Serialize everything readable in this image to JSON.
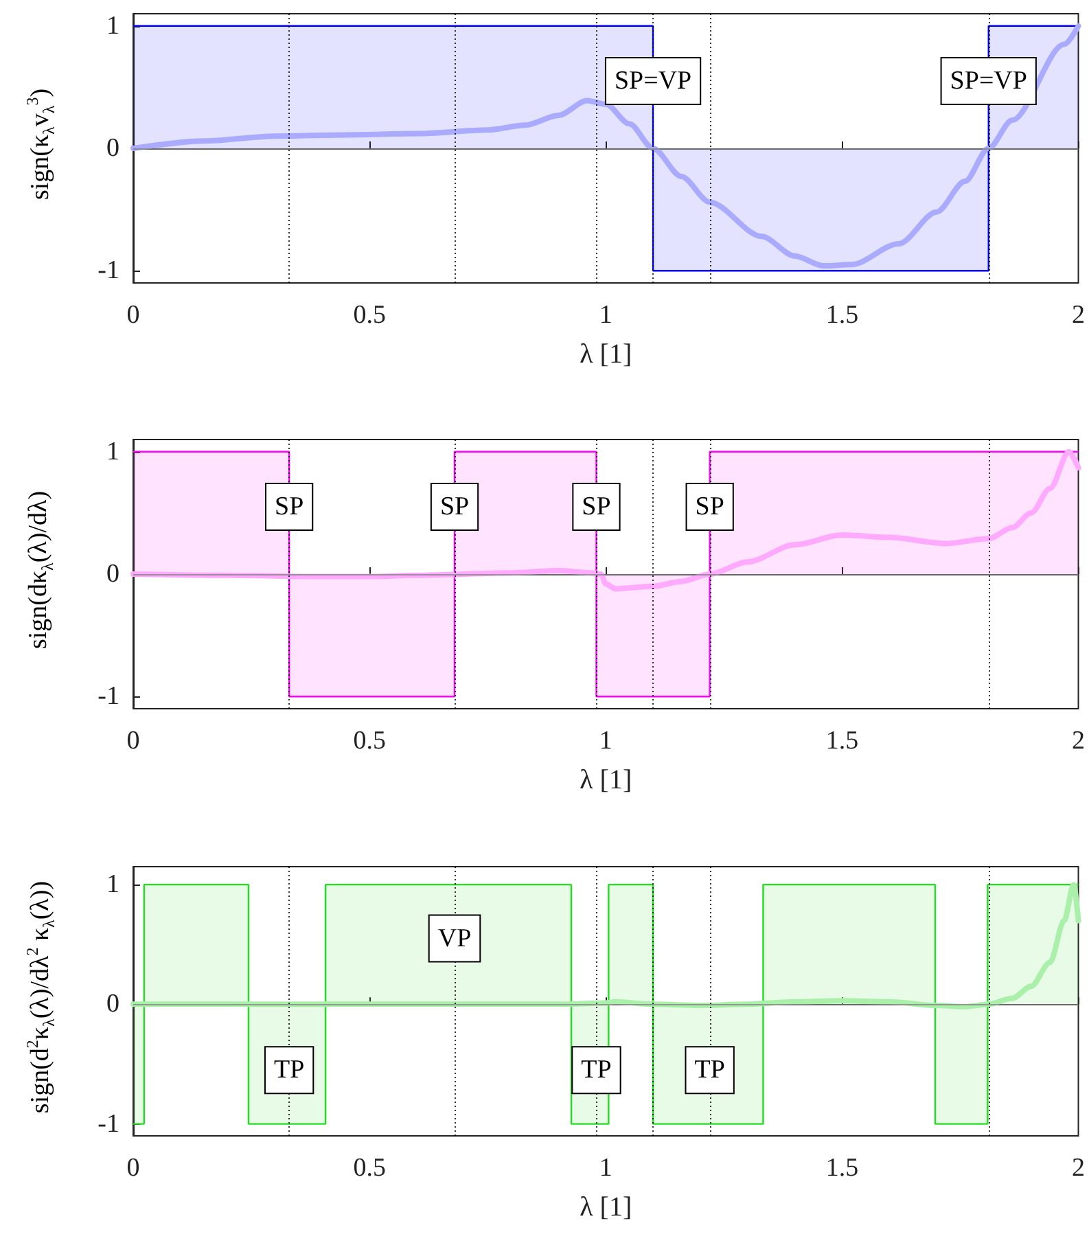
{
  "chart_data": [
    {
      "type": "step",
      "xlabel": "λ [1]",
      "ylabel": "sign(κ$_{λ}$v$_{λ}$$^{3}$)",
      "xlim": [
        0,
        2
      ],
      "ylim": [
        -1.1,
        1.1
      ],
      "xticks": [
        0,
        0.5,
        1,
        1.5,
        2
      ],
      "yticks": [
        -1,
        0,
        1
      ],
      "series": [
        {
          "type": "step",
          "color": "#0000ff",
          "x": [
            0,
            1.1,
            1.81,
            2
          ],
          "values": [
            1,
            -1,
            1,
            1
          ]
        },
        {
          "type": "line",
          "color": "#aaaaff",
          "x": [
            0,
            0.15,
            0.3,
            0.45,
            0.6,
            0.75,
            0.83,
            0.9,
            0.96,
            1.0,
            1.05,
            1.1,
            1.16,
            1.22,
            1.33,
            1.4,
            1.46,
            1.52,
            1.62,
            1.7,
            1.76,
            1.81,
            1.86,
            1.97,
            2
          ],
          "values": [
            0,
            0.06,
            0.1,
            0.11,
            0.12,
            0.15,
            0.19,
            0.27,
            0.39,
            0.36,
            0.2,
            0,
            -0.23,
            -0.44,
            -0.72,
            -0.88,
            -0.96,
            -0.95,
            -0.78,
            -0.52,
            -0.27,
            0,
            0.23,
            0.85,
            1
          ]
        }
      ],
      "ref_lines": [
        {
          "axis": "y",
          "value": 0,
          "color": "#808080",
          "line_style": "solid"
        },
        {
          "axis": "x",
          "value": 0.33,
          "color": "#000000",
          "line_style": "dotted"
        },
        {
          "axis": "x",
          "value": 0.68,
          "color": "#000000",
          "line_style": "dotted"
        },
        {
          "axis": "x",
          "value": 0.98,
          "color": "#000000",
          "line_style": "dotted"
        },
        {
          "axis": "x",
          "value": 1.1,
          "color": "#000000",
          "line_style": "dotted"
        },
        {
          "axis": "x",
          "value": 1.22,
          "color": "#000000",
          "line_style": "dotted"
        },
        {
          "axis": "x",
          "value": 1.81,
          "color": "#000000",
          "line_style": "dotted"
        }
      ],
      "annotations": [
        {
          "text": "SP=VP",
          "x": 1.1,
          "y": 0.55
        },
        {
          "text": "SP=VP",
          "x": 1.81,
          "y": 0.55
        }
      ]
    },
    {
      "type": "step",
      "xlabel": "λ [1]",
      "ylabel": "sign(dκ$_{λ}$(λ)/dλ)",
      "xlim": [
        0,
        2
      ],
      "ylim": [
        -1.1,
        1.1
      ],
      "xticks": [
        0,
        0.5,
        1,
        1.5,
        2
      ],
      "yticks": [
        -1,
        0,
        1
      ],
      "series": [
        {
          "type": "step",
          "color": "#ff00ff",
          "x": [
            0,
            0.33,
            0.68,
            0.98,
            1.22,
            2
          ],
          "values": [
            1,
            -1,
            1,
            -1,
            1,
            1
          ]
        },
        {
          "type": "line",
          "color": "#ffaaff",
          "x": [
            0,
            0.2,
            0.4,
            0.5,
            0.6,
            0.8,
            0.9,
            0.97,
            0.99,
            1.0,
            1.02,
            1.1,
            1.16,
            1.22,
            1.3,
            1.4,
            1.5,
            1.6,
            1.72,
            1.81,
            1.86,
            1.9,
            1.94,
            1.98,
            2
          ],
          "values": [
            0,
            -0.01,
            -0.02,
            -0.02,
            -0.01,
            0.01,
            0.03,
            0.01,
            0,
            -0.08,
            -0.12,
            -0.1,
            -0.06,
            0,
            0.1,
            0.24,
            0.32,
            0.3,
            0.25,
            0.29,
            0.38,
            0.5,
            0.7,
            1.0,
            0.87
          ]
        }
      ],
      "ref_lines": [
        {
          "axis": "y",
          "value": 0,
          "color": "#808080",
          "line_style": "solid"
        },
        {
          "axis": "x",
          "value": 0.33,
          "color": "#000000",
          "line_style": "dotted"
        },
        {
          "axis": "x",
          "value": 0.68,
          "color": "#000000",
          "line_style": "dotted"
        },
        {
          "axis": "x",
          "value": 0.98,
          "color": "#000000",
          "line_style": "dotted"
        },
        {
          "axis": "x",
          "value": 1.1,
          "color": "#000000",
          "line_style": "dotted"
        },
        {
          "axis": "x",
          "value": 1.22,
          "color": "#000000",
          "line_style": "dotted"
        },
        {
          "axis": "x",
          "value": 1.81,
          "color": "#000000",
          "line_style": "dotted"
        }
      ],
      "annotations": [
        {
          "text": "SP",
          "x": 0.33,
          "y": 0.55
        },
        {
          "text": "SP",
          "x": 0.68,
          "y": 0.55
        },
        {
          "text": "SP",
          "x": 0.98,
          "y": 0.55
        },
        {
          "text": "SP",
          "x": 1.22,
          "y": 0.55
        }
      ]
    },
    {
      "type": "step",
      "xlabel": "λ [1]",
      "ylabel": "sign(d$^{2}$κ$_{λ}$(λ)/dλ$^{2}$ κ$_{λ}$(λ))",
      "xlim": [
        0,
        2
      ],
      "ylim": [
        -1.1,
        1.15
      ],
      "xticks": [
        0,
        0.5,
        1,
        1.5,
        2
      ],
      "yticks": [
        -1,
        0,
        1
      ],
      "series": [
        {
          "type": "step",
          "color": "#22dd22",
          "x": [
            0,
            0.023,
            0.244,
            0.407,
            0.927,
            1.006,
            1.1,
            1.333,
            1.697,
            1.808,
            2
          ],
          "values": [
            -1,
            1,
            -1,
            1,
            -1,
            1,
            -1,
            1,
            -1,
            1,
            1
          ]
        },
        {
          "type": "line",
          "color": "#aaf0aa",
          "x": [
            0,
            0.3,
            0.6,
            0.9,
            1.0,
            1.02,
            1.1,
            1.2,
            1.3,
            1.4,
            1.5,
            1.6,
            1.7,
            1.76,
            1.81,
            1.86,
            1.9,
            1.94,
            1.97,
            1.99,
            2
          ],
          "values": [
            0,
            0,
            0,
            0,
            0.01,
            0.02,
            0,
            -0.01,
            0,
            0.02,
            0.03,
            0.02,
            -0.01,
            -0.02,
            0,
            0.05,
            0.15,
            0.35,
            0.7,
            1.0,
            0.7
          ]
        }
      ],
      "ref_lines": [
        {
          "axis": "y",
          "value": 0,
          "color": "#808080",
          "line_style": "solid"
        },
        {
          "axis": "x",
          "value": 0.33,
          "color": "#000000",
          "line_style": "dotted"
        },
        {
          "axis": "x",
          "value": 0.68,
          "color": "#000000",
          "line_style": "dotted"
        },
        {
          "axis": "x",
          "value": 0.98,
          "color": "#000000",
          "line_style": "dotted"
        },
        {
          "axis": "x",
          "value": 1.1,
          "color": "#000000",
          "line_style": "dotted"
        },
        {
          "axis": "x",
          "value": 1.22,
          "color": "#000000",
          "line_style": "dotted"
        },
        {
          "axis": "x",
          "value": 1.81,
          "color": "#000000",
          "line_style": "dotted"
        }
      ],
      "annotations": [
        {
          "text": "VP",
          "x": 0.68,
          "y": 0.55
        },
        {
          "text": "TP",
          "x": 0.33,
          "y": -0.55
        },
        {
          "text": "TP",
          "x": 0.98,
          "y": -0.55
        },
        {
          "text": "TP",
          "x": 1.22,
          "y": -0.55
        }
      ]
    }
  ]
}
